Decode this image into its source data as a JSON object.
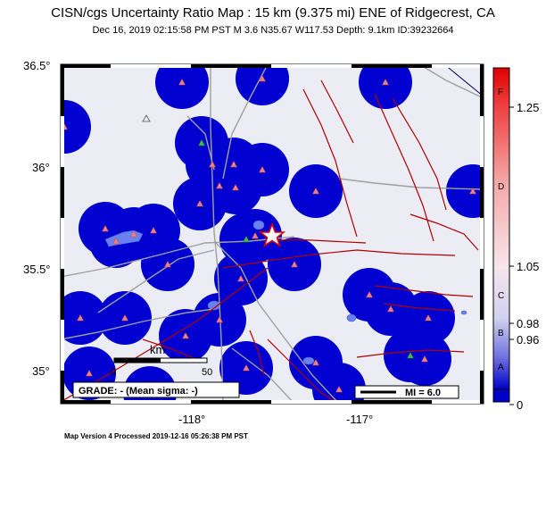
{
  "header": {
    "title": "CISN/cgs Uncertainty Ratio Map : 15 km (9.375 mi) ENE of Ridgecrest, CA",
    "subtitle": "Dec 16, 2019 02:15:58 PM PST   M 3.6   N35.67 W117.53   Depth: 9.1km   ID:39232664"
  },
  "footer": {
    "text": "Map Version 4 Processed 2019-12-16 05:26:38 PM PST"
  },
  "axes": {
    "lat_labels": [
      "36.5°",
      "36°",
      "35.5°",
      "35°"
    ],
    "lon_labels": [
      "-118°",
      "-117°"
    ]
  },
  "scale_bar": {
    "unit": "km",
    "start": "0",
    "end": "50"
  },
  "grade_box": {
    "text": "GRADE: - (Mean sigma: -)"
  },
  "mi_box": {
    "text": "MI = 6.0"
  },
  "colorbar": {
    "ticks": [
      "1.25",
      "1.05",
      "0.98",
      "0.96",
      "0"
    ],
    "letters": [
      "F",
      "D",
      "C",
      "B",
      "A"
    ],
    "colors": {
      "top": "#e00000",
      "mid": "#f6eef2",
      "bottom": "#0000c8"
    }
  },
  "colors": {
    "background": "#ececf4",
    "station_circle": "#0000d0",
    "station_marker": "#f08080",
    "station_marker_alt": "#40c040",
    "fault": "#b00000",
    "road": "#a0a0a0",
    "lake": "#6a7ff0",
    "epicenter": "#e00000"
  }
}
